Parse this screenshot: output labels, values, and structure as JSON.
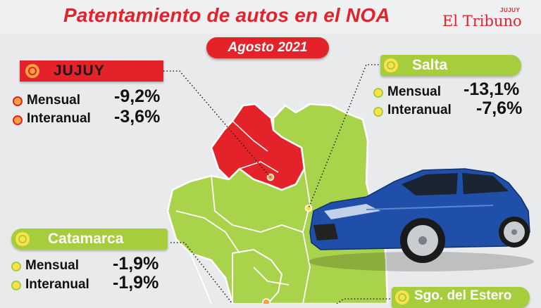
{
  "header": {
    "title": "Patentamiento de autos en el NOA",
    "subtitle": "Agosto 2021",
    "logo": {
      "text": "El Tribuno",
      "superscript": "JUJUY"
    }
  },
  "provinces": {
    "jujuy": {
      "name": "JUJUY",
      "rows": [
        {
          "label": "Mensual",
          "value": "-9,2%"
        },
        {
          "label": "Interanual",
          "value": "-3,6%"
        }
      ]
    },
    "salta": {
      "name": "Salta",
      "rows": [
        {
          "label": "Mensual",
          "value": "-13,1%"
        },
        {
          "label": "Interanual",
          "value": "-7,6%"
        }
      ]
    },
    "catamarca": {
      "name": "Catamarca",
      "rows": [
        {
          "label": "Mensual",
          "value": "-1,9%"
        },
        {
          "label": "Interanual",
          "value": "-1,9%"
        }
      ]
    },
    "sgo_del_estero": {
      "name": "Sgo. del Estero"
    }
  },
  "colors": {
    "red": "#e3222a",
    "green": "#a6cd3b",
    "map_green": "#a9d34a",
    "car_blue": "#1f4fa8"
  }
}
